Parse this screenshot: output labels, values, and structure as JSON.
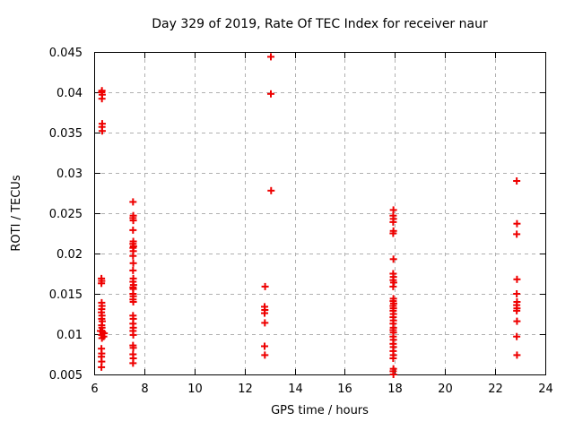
{
  "chart_data": {
    "type": "scatter",
    "title": "Day 329 of 2019, Rate Of TEC Index for receiver naur",
    "xlabel": "GPS time / hours",
    "ylabel": "ROTI / TECUs",
    "xlim": [
      6,
      24
    ],
    "ylim": [
      0.005,
      0.045
    ],
    "xticks": [
      6,
      8,
      10,
      12,
      14,
      16,
      18,
      20,
      22,
      24
    ],
    "xtick_labels": [
      "6",
      "8",
      "10",
      "12",
      "14",
      "16",
      "18",
      "20",
      "22",
      "24"
    ],
    "yticks": [
      0.005,
      0.01,
      0.015,
      0.02,
      0.025,
      0.03,
      0.035,
      0.04,
      0.045
    ],
    "ytick_labels": [
      "0.005",
      "0.01",
      "0.015",
      "0.02",
      "0.025",
      "0.03",
      "0.035",
      "0.04",
      "0.045"
    ],
    "grid": true,
    "legend": false,
    "marker": {
      "shape": "plus",
      "color": "#ee0000",
      "size": 9
    },
    "colors": {
      "marker": "#ee0000",
      "grid": "#b0b0b0",
      "axis": "#000000",
      "background": "#ffffff"
    },
    "series": [
      {
        "name": "ROTI",
        "points": [
          [
            6.31,
            0.0402
          ],
          [
            6.3,
            0.04
          ],
          [
            6.32,
            0.0397
          ],
          [
            6.31,
            0.0392
          ],
          [
            6.32,
            0.0361
          ],
          [
            6.31,
            0.0357
          ],
          [
            6.32,
            0.0352
          ],
          [
            6.29,
            0.0169
          ],
          [
            6.3,
            0.0166
          ],
          [
            6.29,
            0.0163
          ],
          [
            6.3,
            0.0139
          ],
          [
            6.31,
            0.0135
          ],
          [
            6.3,
            0.0131
          ],
          [
            6.29,
            0.0127
          ],
          [
            6.31,
            0.0123
          ],
          [
            6.3,
            0.0119
          ],
          [
            6.32,
            0.0116
          ],
          [
            6.3,
            0.0111
          ],
          [
            6.31,
            0.0108
          ],
          [
            6.25,
            0.0104
          ],
          [
            6.33,
            0.0103
          ],
          [
            6.4,
            0.0101
          ],
          [
            6.3,
            0.0099
          ],
          [
            6.38,
            0.0097
          ],
          [
            6.31,
            0.0095
          ],
          [
            6.29,
            0.0082
          ],
          [
            6.3,
            0.0076
          ],
          [
            6.29,
            0.0072
          ],
          [
            6.3,
            0.0066
          ],
          [
            6.29,
            0.0059
          ],
          [
            7.55,
            0.0264
          ],
          [
            7.56,
            0.0247
          ],
          [
            7.55,
            0.0244
          ],
          [
            7.56,
            0.0241
          ],
          [
            7.55,
            0.0229
          ],
          [
            7.56,
            0.0215
          ],
          [
            7.55,
            0.0212
          ],
          [
            7.57,
            0.0209
          ],
          [
            7.55,
            0.0207
          ],
          [
            7.56,
            0.0203
          ],
          [
            7.55,
            0.0197
          ],
          [
            7.56,
            0.0188
          ],
          [
            7.55,
            0.0179
          ],
          [
            7.56,
            0.0169
          ],
          [
            7.55,
            0.0165
          ],
          [
            7.57,
            0.0161
          ],
          [
            7.55,
            0.0158
          ],
          [
            7.56,
            0.0156
          ],
          [
            7.55,
            0.015
          ],
          [
            7.56,
            0.0147
          ],
          [
            7.55,
            0.0143
          ],
          [
            7.56,
            0.014
          ],
          [
            7.55,
            0.0123
          ],
          [
            7.56,
            0.0119
          ],
          [
            7.55,
            0.0113
          ],
          [
            7.56,
            0.0108
          ],
          [
            7.55,
            0.0104
          ],
          [
            7.56,
            0.0099
          ],
          [
            7.55,
            0.0086
          ],
          [
            7.56,
            0.0083
          ],
          [
            7.55,
            0.0075
          ],
          [
            7.56,
            0.007
          ],
          [
            7.55,
            0.0064
          ],
          [
            13.05,
            0.0444
          ],
          [
            13.05,
            0.0398
          ],
          [
            13.06,
            0.0278
          ],
          [
            12.82,
            0.0159
          ],
          [
            12.8,
            0.0134
          ],
          [
            12.81,
            0.013
          ],
          [
            12.8,
            0.0126
          ],
          [
            12.81,
            0.0114
          ],
          [
            12.8,
            0.0085
          ],
          [
            12.81,
            0.0074
          ],
          [
            17.94,
            0.0254
          ],
          [
            17.93,
            0.0247
          ],
          [
            17.94,
            0.0243
          ],
          [
            17.93,
            0.0239
          ],
          [
            17.94,
            0.0228
          ],
          [
            17.93,
            0.0225
          ],
          [
            17.94,
            0.0193
          ],
          [
            17.93,
            0.0175
          ],
          [
            17.94,
            0.0171
          ],
          [
            17.93,
            0.0167
          ],
          [
            17.95,
            0.0164
          ],
          [
            17.93,
            0.0159
          ],
          [
            17.94,
            0.0144
          ],
          [
            17.93,
            0.0141
          ],
          [
            17.95,
            0.0138
          ],
          [
            17.93,
            0.0135
          ],
          [
            17.94,
            0.0132
          ],
          [
            17.93,
            0.0129
          ],
          [
            17.94,
            0.0125
          ],
          [
            17.93,
            0.0121
          ],
          [
            17.94,
            0.0117
          ],
          [
            17.93,
            0.0113
          ],
          [
            17.94,
            0.0108
          ],
          [
            17.93,
            0.0105
          ],
          [
            17.94,
            0.0102
          ],
          [
            17.93,
            0.0097
          ],
          [
            17.94,
            0.0093
          ],
          [
            17.93,
            0.0088
          ],
          [
            17.94,
            0.0084
          ],
          [
            17.93,
            0.0079
          ],
          [
            17.94,
            0.0074
          ],
          [
            17.93,
            0.007
          ],
          [
            17.94,
            0.0057
          ],
          [
            17.93,
            0.0054
          ],
          [
            17.94,
            0.005
          ],
          [
            22.86,
            0.029
          ],
          [
            22.87,
            0.0237
          ],
          [
            22.86,
            0.0224
          ],
          [
            22.87,
            0.0168
          ],
          [
            22.86,
            0.015
          ],
          [
            22.87,
            0.014
          ],
          [
            22.86,
            0.0136
          ],
          [
            22.87,
            0.0132
          ],
          [
            22.86,
            0.0129
          ],
          [
            22.87,
            0.0116
          ],
          [
            22.86,
            0.0097
          ],
          [
            22.87,
            0.0074
          ]
        ]
      }
    ]
  }
}
